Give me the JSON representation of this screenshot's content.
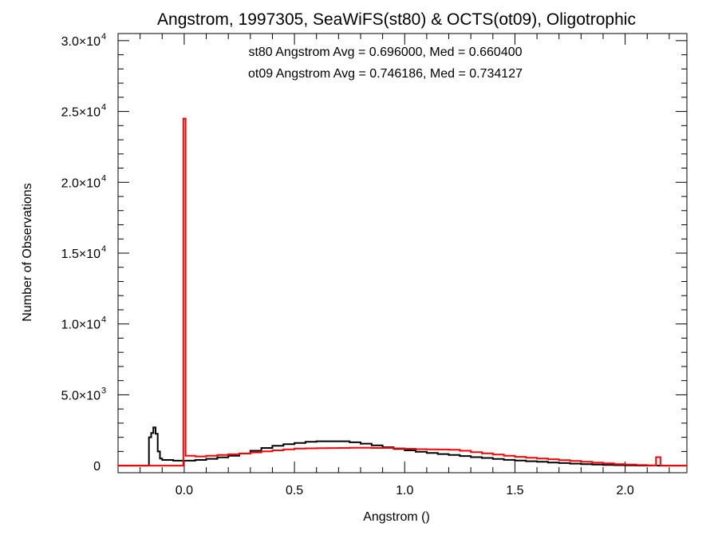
{
  "chart_data": {
    "type": "line",
    "title": "Angstrom, 1997305, SeaWiFS(st80) & OCTS(ot09), Oligotrophic",
    "xlabel": "Angstrom ()",
    "ylabel": "Number of Observations",
    "xlim": [
      -0.3,
      2.28
    ],
    "ylim": [
      -500,
      30500
    ],
    "x_ticks": [
      0.0,
      0.5,
      1.0,
      1.5,
      2.0
    ],
    "x_tick_labels": [
      "0.0",
      "0.5",
      "1.0",
      "1.5",
      "2.0"
    ],
    "y_ticks": [
      {
        "value": 0,
        "mantissa": "0",
        "exponent": ""
      },
      {
        "value": 5000,
        "mantissa": "5.0×10",
        "exponent": "3"
      },
      {
        "value": 10000,
        "mantissa": "1.0×10",
        "exponent": "4"
      },
      {
        "value": 15000,
        "mantissa": "1.5×10",
        "exponent": "4"
      },
      {
        "value": 20000,
        "mantissa": "2.0×10",
        "exponent": "4"
      },
      {
        "value": 25000,
        "mantissa": "2.5×10",
        "exponent": "4"
      },
      {
        "value": 30000,
        "mantissa": "3.0×10",
        "exponent": "4"
      }
    ],
    "annotations": [
      {
        "text": "st80 Angstrom Avg = 0.696000, Med = 0.660400",
        "color": "#000000"
      },
      {
        "text": "ot09 Angstrom Avg = 0.746186, Med = 0.734127",
        "color": "#ff0000"
      }
    ],
    "series": [
      {
        "color": "#000000",
        "x": [
          -0.3,
          -0.17,
          -0.16,
          -0.15,
          -0.14,
          -0.13,
          -0.12,
          -0.11,
          -0.1,
          -0.05,
          0.0,
          0.05,
          0.1,
          0.15,
          0.2,
          0.25,
          0.3,
          0.35,
          0.4,
          0.45,
          0.5,
          0.55,
          0.6,
          0.65,
          0.7,
          0.75,
          0.8,
          0.85,
          0.9,
          0.95,
          1.0,
          1.05,
          1.1,
          1.15,
          1.2,
          1.25,
          1.3,
          1.35,
          1.4,
          1.45,
          1.5,
          1.55,
          1.6,
          1.65,
          1.7,
          1.75,
          1.8,
          1.85,
          1.9,
          1.95,
          2.0,
          2.05,
          2.1,
          2.15,
          2.28
        ],
        "y": [
          0,
          0,
          2000,
          2300,
          2700,
          2250,
          1000,
          500,
          400,
          350,
          350,
          400,
          480,
          580,
          700,
          860,
          1050,
          1250,
          1400,
          1520,
          1600,
          1680,
          1720,
          1720,
          1720,
          1650,
          1550,
          1430,
          1300,
          1180,
          1080,
          980,
          900,
          820,
          750,
          680,
          600,
          540,
          470,
          410,
          360,
          310,
          270,
          220,
          180,
          140,
          110,
          80,
          55,
          35,
          20,
          10,
          5,
          0,
          0
        ]
      },
      {
        "color": "#ff0000",
        "x": [
          -0.3,
          -0.005,
          -0.004,
          0.005,
          0.006,
          0.05,
          0.1,
          0.15,
          0.2,
          0.25,
          0.3,
          0.35,
          0.4,
          0.45,
          0.5,
          0.55,
          0.6,
          0.65,
          0.7,
          0.75,
          0.8,
          0.85,
          0.9,
          0.95,
          1.0,
          1.05,
          1.1,
          1.15,
          1.2,
          1.25,
          1.3,
          1.35,
          1.4,
          1.45,
          1.5,
          1.55,
          1.6,
          1.65,
          1.7,
          1.75,
          1.8,
          1.85,
          1.9,
          1.95,
          2.0,
          2.05,
          2.1,
          2.13,
          2.14,
          2.15,
          2.16,
          2.28
        ],
        "y": [
          0,
          0,
          24500,
          24500,
          700,
          650,
          700,
          750,
          800,
          850,
          930,
          1010,
          1080,
          1150,
          1200,
          1220,
          1230,
          1240,
          1250,
          1260,
          1260,
          1250,
          1250,
          1220,
          1190,
          1160,
          1150,
          1140,
          1120,
          1050,
          950,
          870,
          780,
          700,
          620,
          560,
          500,
          450,
          390,
          330,
          270,
          210,
          160,
          110,
          80,
          40,
          20,
          10,
          600,
          600,
          0,
          0
        ]
      }
    ]
  }
}
